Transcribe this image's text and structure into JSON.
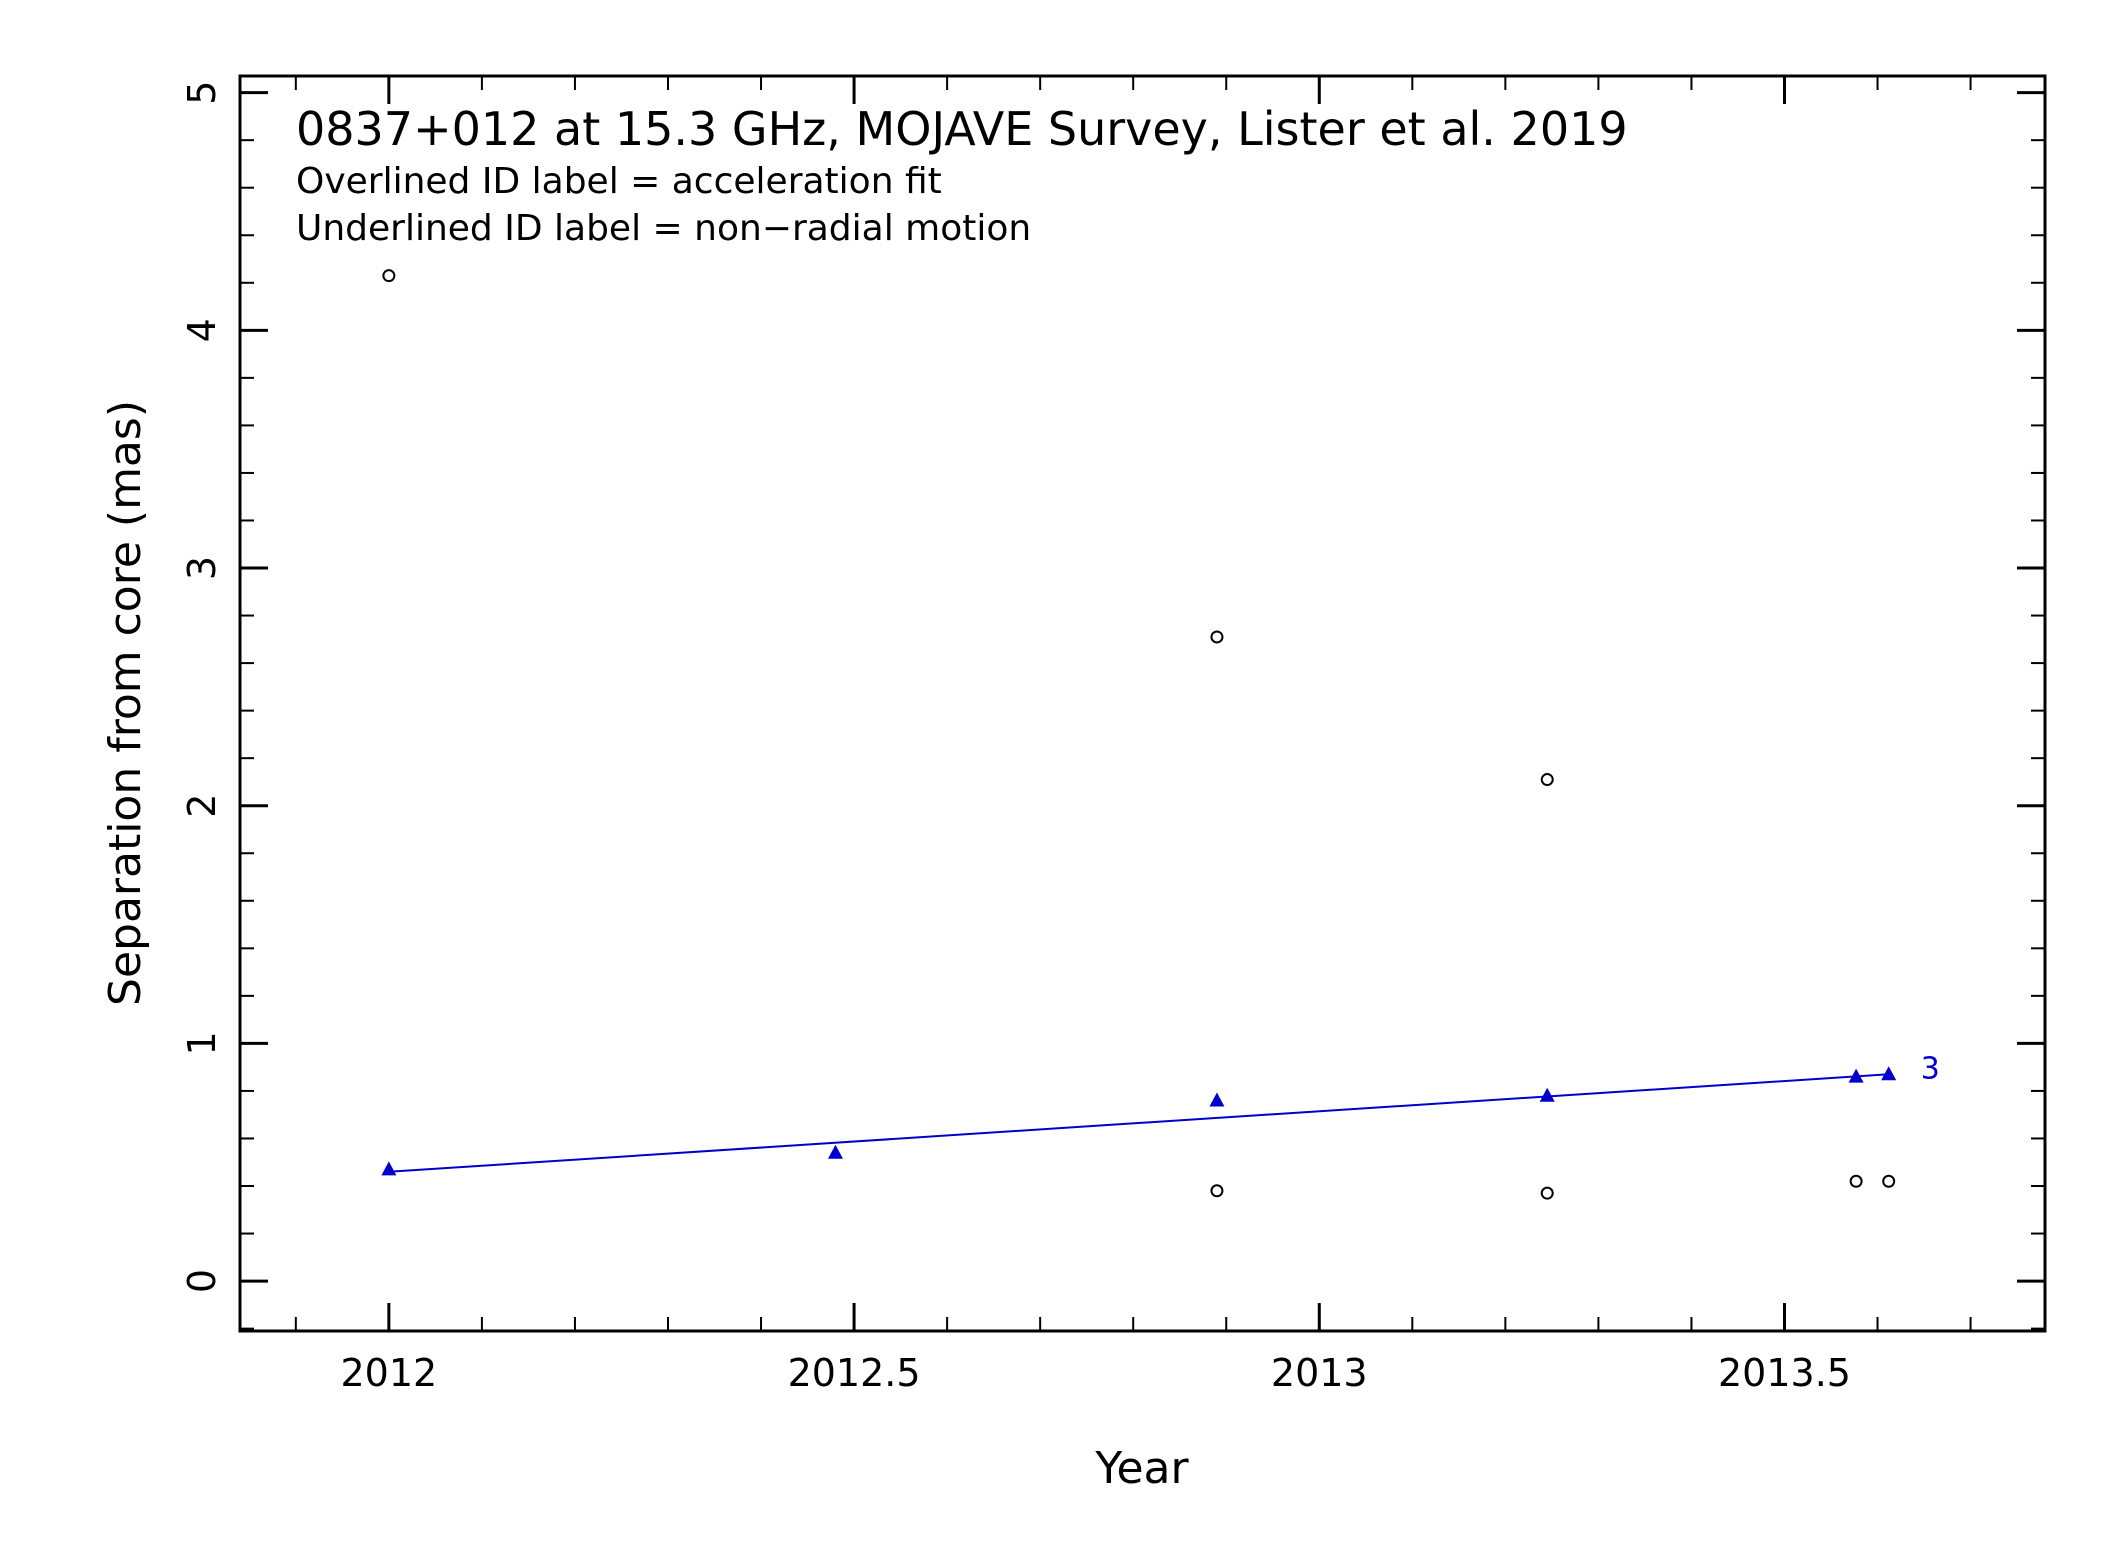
{
  "chart_data": {
    "type": "scatter",
    "title": "0837+012 at 15.3 GHz, MOJAVE Survey, Lister et al. 2019",
    "notes": [
      "Overlined ID label = acceleration fit",
      "Underlined ID label = non−radial motion"
    ],
    "xlabel": "Year",
    "ylabel": "Separation from core (mas)",
    "xlim": [
      2011.84,
      2013.78
    ],
    "ylim": [
      -0.21,
      5.07
    ],
    "xticks": [
      2012,
      2012.5,
      2013,
      2013.5
    ],
    "xtick_labels": [
      "2012",
      "2012.5",
      "2013",
      "2013.5"
    ],
    "yticks": [
      0,
      1,
      2,
      3,
      4,
      5
    ],
    "ytick_labels": [
      "0",
      "1",
      "2",
      "3",
      "4",
      "5"
    ],
    "grid": false,
    "series": [
      {
        "marker": "open-circle",
        "color": "#000000",
        "x": [
          2012.0,
          2012.89,
          2012.89,
          2013.245,
          2013.245,
          2013.577,
          2013.612
        ],
        "y": [
          4.23,
          2.71,
          0.38,
          2.11,
          0.37,
          0.42,
          0.42
        ]
      },
      {
        "marker": "filled-triangle",
        "color": "#0000cc",
        "x": [
          2012.0,
          2012.48,
          2012.89,
          2013.245,
          2013.577,
          2013.612
        ],
        "y": [
          0.47,
          0.54,
          0.76,
          0.78,
          0.86,
          0.87
        ]
      }
    ],
    "fit_line": {
      "color": "#0000cc",
      "x": [
        2012.0,
        2013.612
      ],
      "y": [
        0.46,
        0.87
      ],
      "label": "3"
    }
  }
}
